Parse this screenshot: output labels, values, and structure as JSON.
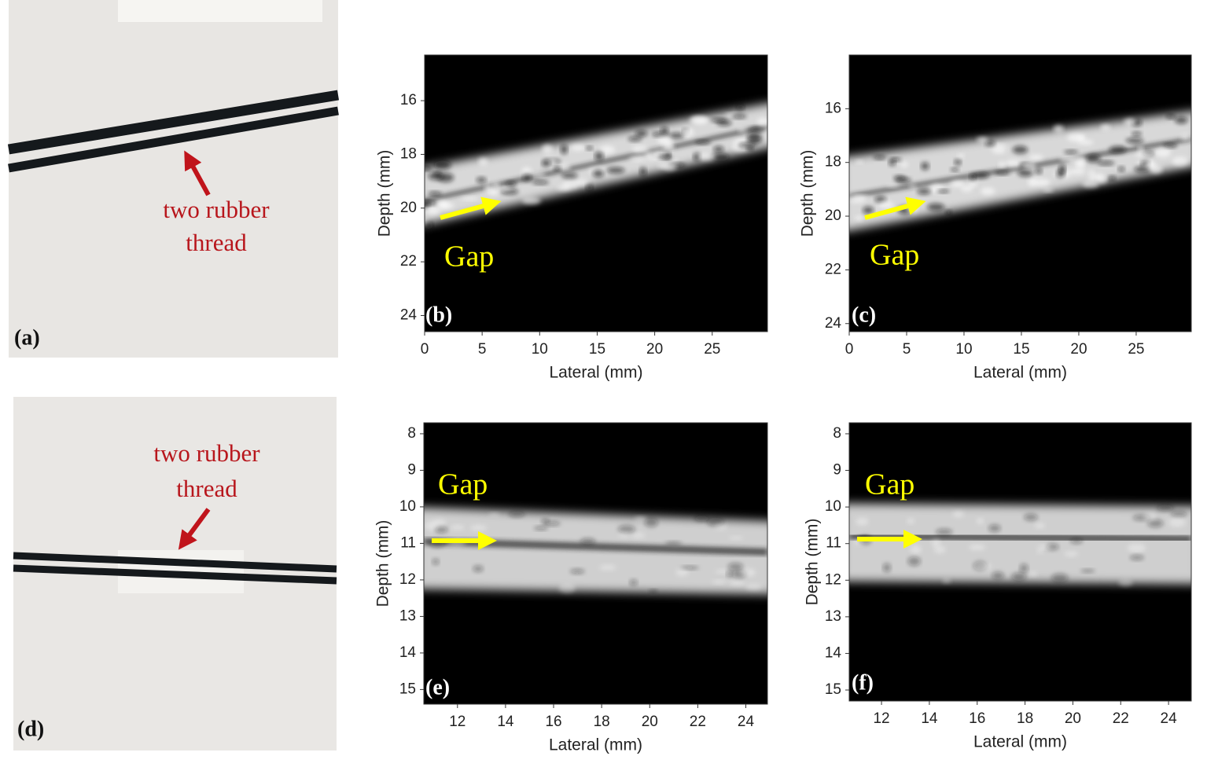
{
  "photo_a": {
    "label": "(a)",
    "annotation": [
      "two rubber",
      "thread"
    ]
  },
  "plot_b": {
    "label": "(b)",
    "annotation": "Gap",
    "xlabel": "Lateral (mm)",
    "ylabel": "Depth (mm)",
    "xlim": [
      0,
      29.8
    ],
    "ylim": [
      24.6,
      14.3
    ],
    "xticks": [
      0,
      5,
      10,
      15,
      20,
      25
    ],
    "yticks": [
      16,
      18,
      20,
      22,
      24
    ]
  },
  "plot_c": {
    "label": "(c)",
    "annotation": "Gap",
    "xlabel": "Lateral (mm)",
    "ylabel": "Depth (mm)",
    "xlim": [
      0,
      29.8
    ],
    "ylim": [
      24.3,
      14.0
    ],
    "xticks": [
      0,
      5,
      10,
      15,
      20,
      25
    ],
    "yticks": [
      16,
      18,
      20,
      22,
      24
    ]
  },
  "photo_d": {
    "label": "(d)",
    "annotation": [
      "two rubber",
      "thread"
    ]
  },
  "plot_e": {
    "label": "(e)",
    "annotation": "Gap",
    "xlabel": "Lateral (mm)",
    "ylabel": "Depth (mm)",
    "xlim": [
      10.6,
      24.9
    ],
    "ylim": [
      15.4,
      7.7
    ],
    "xticks": [
      12,
      14,
      16,
      18,
      20,
      22,
      24
    ],
    "yticks": [
      8,
      9,
      10,
      11,
      12,
      13,
      14,
      15
    ]
  },
  "plot_f": {
    "label": "(f)",
    "annotation": "Gap",
    "xlabel": "Lateral (mm)",
    "ylabel": "Depth (mm)",
    "xlim": [
      10.65,
      24.95
    ],
    "ylim": [
      15.3,
      7.7
    ],
    "xticks": [
      12,
      14,
      16,
      18,
      20,
      22,
      24
    ],
    "yticks": [
      8,
      9,
      10,
      11,
      12,
      13,
      14,
      15
    ]
  }
}
